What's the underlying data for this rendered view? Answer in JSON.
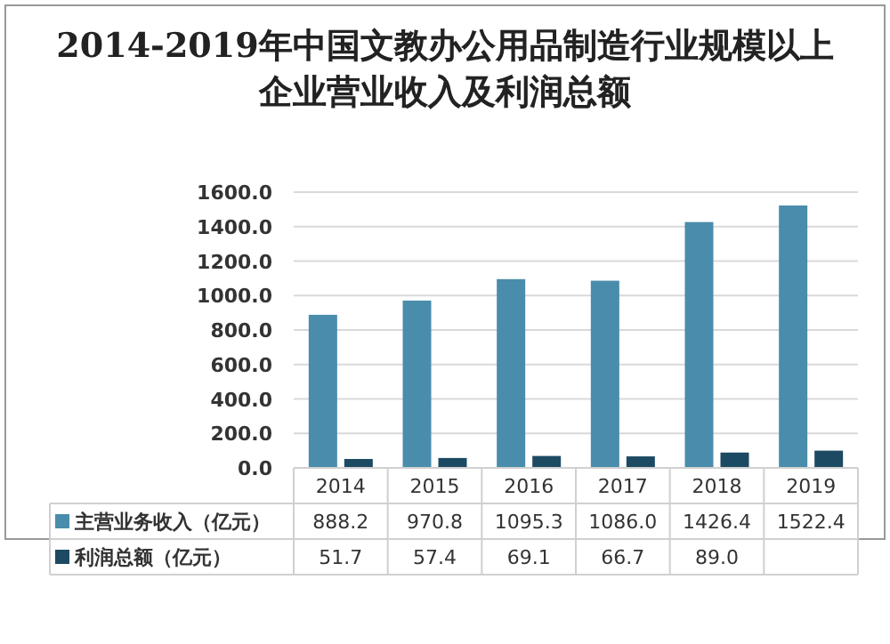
{
  "chart_data": {
    "type": "bar",
    "title": "2014-2019年中国文教办公用品制造行业规模以上企业营业收入及利润总额",
    "categories": [
      "2014",
      "2015",
      "2016",
      "2017",
      "2018",
      "2019"
    ],
    "series": [
      {
        "name": "主营业务收入（亿元）",
        "color": "#4a8cab",
        "values": [
          888.2,
          970.8,
          1095.3,
          1086.0,
          1426.4,
          1522.4
        ],
        "value_labels": [
          "888.2",
          "970.8",
          "1095.3",
          "1086.0",
          "1426.4",
          "1522.4"
        ]
      },
      {
        "name": "利润总额（亿元）",
        "color": "#1d4a63",
        "values": [
          51.7,
          57.4,
          69.1,
          66.7,
          89.0,
          100
        ],
        "value_labels": [
          "51.7",
          "57.4",
          "69.1",
          "66.7",
          "89.0",
          null
        ]
      }
    ],
    "ylim": [
      0,
      1600
    ],
    "yticks": [
      {
        "value": 0,
        "label": "0.0"
      },
      {
        "value": 200,
        "label": "200.0"
      },
      {
        "value": 400,
        "label": "400.0"
      },
      {
        "value": 600,
        "label": "600.0"
      },
      {
        "value": 800,
        "label": "800.0"
      },
      {
        "value": 1000,
        "label": "1000.0"
      },
      {
        "value": 1200,
        "label": "1200.0"
      },
      {
        "value": 1400,
        "label": "1400.0"
      },
      {
        "value": 1600,
        "label": "1600.0"
      }
    ],
    "grid": "y",
    "legend": "bottom"
  }
}
